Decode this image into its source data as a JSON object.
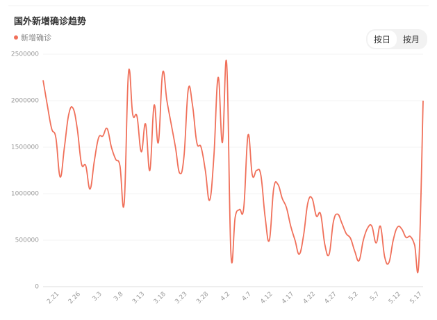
{
  "title": "国外新增确诊趋势",
  "toggle": [
    "按日",
    "按月"
  ],
  "chart_data": {
    "type": "line",
    "categories": [
      null,
      null,
      null,
      "2.21",
      null,
      null,
      null,
      null,
      "2.26",
      null,
      null,
      null,
      null,
      "3.3",
      null,
      null,
      null,
      null,
      "3.8",
      null,
      null,
      null,
      null,
      "3.13",
      null,
      null,
      null,
      null,
      "3.18",
      null,
      null,
      null,
      null,
      "3.23",
      null,
      null,
      null,
      null,
      "3.28",
      null,
      null,
      null,
      null,
      "4.2",
      null,
      null,
      null,
      null,
      "4.7",
      null,
      null,
      null,
      null,
      "4.12",
      null,
      null,
      null,
      null,
      "4.17",
      null,
      null,
      null,
      null,
      "4.22",
      null,
      null,
      null,
      null,
      "4.27",
      null,
      null,
      null,
      null,
      "5.2",
      null,
      null,
      null,
      null,
      "5.7",
      null,
      null,
      null,
      null,
      "5.12",
      null,
      null,
      null,
      null,
      "5.17",
      null
    ],
    "series": [
      {
        "name": "新增确诊",
        "color": "#f0705a",
        "values": [
          2220000,
          1950000,
          1700000,
          1600000,
          1180000,
          1500000,
          1850000,
          1920000,
          1700000,
          1320000,
          1300000,
          1050000,
          1350000,
          1600000,
          1620000,
          1700000,
          1500000,
          1370000,
          1300000,
          900000,
          2300000,
          1850000,
          1830000,
          1450000,
          1750000,
          1250000,
          1950000,
          1550000,
          2300000,
          2000000,
          1750000,
          1500000,
          1220000,
          1400000,
          2120000,
          1950000,
          1550000,
          1500000,
          1250000,
          930000,
          1400000,
          2250000,
          1550000,
          2400000,
          350000,
          750000,
          830000,
          850000,
          1630000,
          1200000,
          1250000,
          1200000,
          750000,
          500000,
          1050000,
          1100000,
          950000,
          850000,
          650000,
          500000,
          350000,
          550000,
          900000,
          950000,
          760000,
          780000,
          450000,
          350000,
          700000,
          780000,
          680000,
          570000,
          520000,
          380000,
          280000,
          500000,
          630000,
          650000,
          470000,
          650000,
          320000,
          260000,
          500000,
          640000,
          620000,
          530000,
          540000,
          450000,
          260000,
          2000000
        ]
      }
    ],
    "ylim": [
      0,
      2500000
    ],
    "yticks": [
      0,
      500000,
      1000000,
      1500000,
      2000000,
      2500000
    ],
    "grid": true
  }
}
